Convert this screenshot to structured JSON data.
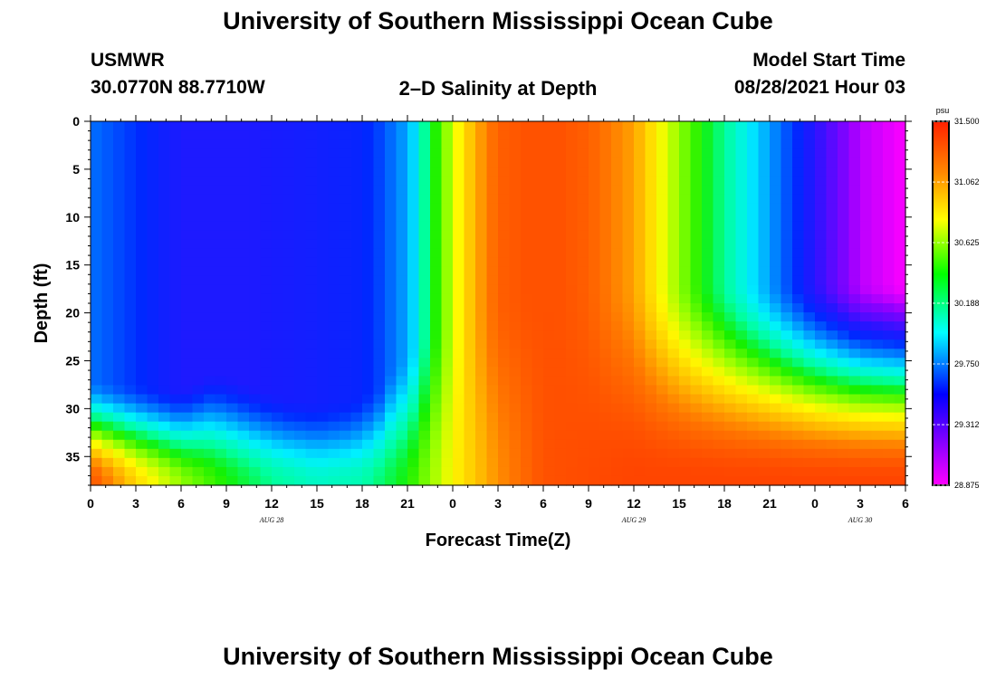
{
  "page": {
    "title_top": "University of Southern Mississippi Ocean Cube",
    "title_bottom": "University of Southern Mississippi Ocean Cube",
    "station_name": "USMWR",
    "station_coords": "30.0770N  88.7710W",
    "center_title": "2–D Salinity at Depth",
    "model_start_label": "Model Start Time",
    "model_start_value": "08/28/2021 Hour 03"
  },
  "colors": {
    "low": "#ff00ff",
    "mid_low": "#0000ff",
    "mid": "#00ffff",
    "mid_high": "#00ff00",
    "high_mid": "#ffff00",
    "high": "#ff2a00"
  },
  "chart_data": {
    "type": "heatmap",
    "title": "2–D Salinity at Depth",
    "xlabel": "Forecast Time(Z)",
    "ylabel": "Depth (ft)",
    "x_tick_labels": [
      "0",
      "3",
      "6",
      "9",
      "12",
      "15",
      "18",
      "21",
      "0",
      "3",
      "6",
      "9",
      "12",
      "15",
      "18",
      "21",
      "0",
      "3",
      "6"
    ],
    "x_day_labels": [
      {
        "label": "AUG 28",
        "at_tick": 4
      },
      {
        "label": "AUG 29",
        "at_tick": 12
      },
      {
        "label": "AUG 30",
        "at_tick": 17
      }
    ],
    "x_range_hours": [
      0,
      54
    ],
    "y_tick_labels": [
      "0",
      "5",
      "10",
      "15",
      "20",
      "25",
      "30",
      "35"
    ],
    "y_range_ft": [
      0,
      38
    ],
    "colorbar": {
      "unit": "psu",
      "min": 28.875,
      "max": 31.5,
      "tick_labels": [
        "31.500",
        "31.062",
        "30.625",
        "30.188",
        "29.750",
        "29.312",
        "28.875"
      ]
    },
    "surface_profile": {
      "hours": [
        0,
        3,
        5,
        6,
        7,
        8,
        9,
        10,
        10.6,
        12,
        15,
        18,
        19.2,
        20,
        20.8,
        21.5,
        22,
        22.6,
        23.2,
        23.8,
        24.4,
        25.4,
        27,
        29,
        31,
        33,
        36,
        39,
        42,
        45,
        48,
        51,
        54
      ],
      "salinity": [
        29.7,
        29.55,
        29.45,
        29.4,
        29.4,
        29.4,
        29.4,
        29.4,
        29.4,
        29.42,
        29.45,
        29.5,
        29.6,
        29.7,
        29.8,
        29.95,
        30.15,
        30.35,
        30.5,
        30.65,
        30.8,
        31.0,
        31.25,
        31.3,
        31.3,
        31.25,
        31.05,
        30.6,
        30.2,
        29.8,
        29.35,
        29.0,
        28.88
      ]
    },
    "mixed_layer_base_ft": {
      "hours": [
        0,
        3,
        6,
        8,
        9,
        11,
        13,
        15,
        17,
        19,
        20,
        21,
        22,
        23,
        24,
        25,
        26,
        28,
        30,
        54
      ],
      "depth": [
        27.0,
        27.5,
        27.8,
        26.2,
        26.4,
        27.6,
        28.8,
        29.3,
        29.1,
        27.8,
        25.3,
        24.2,
        22.6,
        21.6,
        20.6,
        19.8,
        19.0,
        17.8,
        17.0,
        17.0
      ]
    },
    "bottom_salinity": {
      "hours": [
        0,
        3,
        6,
        9,
        12,
        15,
        18,
        21,
        24,
        27,
        30,
        36,
        54
      ],
      "salinity": [
        31.3,
        30.9,
        30.6,
        30.4,
        30.2,
        30.1,
        30.15,
        30.4,
        30.8,
        31.1,
        31.3,
        31.35,
        31.35
      ]
    }
  }
}
